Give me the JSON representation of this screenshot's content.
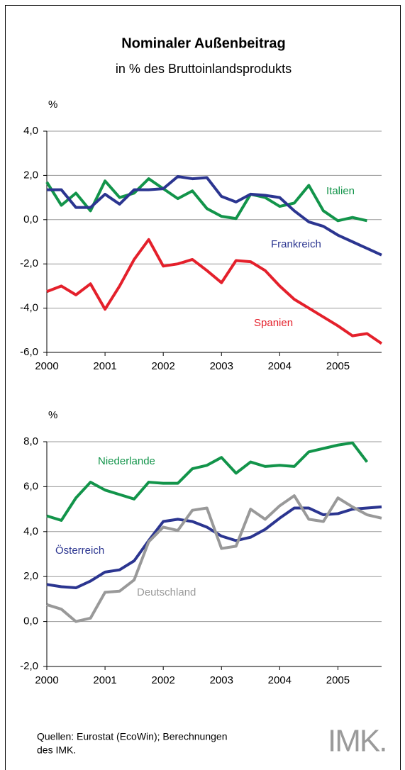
{
  "title": "Nominaler Außenbeitrag",
  "subtitle": "in % des Bruttoinlandsprodukts",
  "chart_data": [
    {
      "type": "line",
      "y_label": "%",
      "x": [
        2000,
        2000.25,
        2000.5,
        2000.75,
        2001,
        2001.25,
        2001.5,
        2001.75,
        2002,
        2002.25,
        2002.5,
        2002.75,
        2003,
        2003.25,
        2003.5,
        2003.75,
        2004,
        2004.25,
        2004.5,
        2004.75,
        2005,
        2005.25,
        2005.5,
        2005.75
      ],
      "xlim": [
        2000,
        2005.75
      ],
      "xticks": [
        2000,
        2001,
        2002,
        2003,
        2004,
        2005
      ],
      "ylim": [
        -6,
        4
      ],
      "yticks": [
        {
          "value": -6,
          "label": "-6,0"
        },
        {
          "value": -4,
          "label": "-4,0"
        },
        {
          "value": -2,
          "label": "-2,0"
        },
        {
          "value": 0,
          "label": "0,0"
        },
        {
          "value": 2,
          "label": "2,0"
        },
        {
          "value": 4,
          "label": "4,0"
        }
      ],
      "grid": true,
      "series": [
        {
          "name": "Italien",
          "color": "#12944a",
          "values": [
            1.7,
            0.65,
            1.2,
            0.4,
            1.75,
            1.0,
            1.2,
            1.85,
            1.4,
            0.95,
            1.3,
            0.5,
            0.15,
            0.05,
            1.15,
            1.0,
            0.6,
            0.75,
            1.55,
            0.4,
            -0.05,
            0.1,
            -0.05,
            null
          ]
        },
        {
          "name": "Frankreich",
          "color": "#2b3590",
          "values": [
            1.35,
            1.35,
            0.55,
            0.55,
            1.15,
            0.7,
            1.35,
            1.35,
            1.4,
            1.95,
            1.85,
            1.9,
            1.05,
            0.8,
            1.15,
            1.1,
            1.0,
            0.4,
            -0.1,
            -0.3,
            -0.7,
            -1.0,
            -1.3,
            -1.6
          ]
        },
        {
          "name": "Spanien",
          "color": "#e4202b",
          "values": [
            -3.25,
            -3.0,
            -3.4,
            -2.9,
            -4.05,
            -3.0,
            -1.8,
            -0.9,
            -2.1,
            -2.0,
            -1.8,
            -2.3,
            -2.85,
            -1.85,
            -1.9,
            -2.3,
            -3.0,
            -3.6,
            -4.0,
            -4.4,
            -4.8,
            -5.25,
            -5.15,
            -5.6
          ]
        }
      ]
    },
    {
      "type": "line",
      "y_label": "%",
      "x": [
        2000,
        2000.25,
        2000.5,
        2000.75,
        2001,
        2001.25,
        2001.5,
        2001.75,
        2002,
        2002.25,
        2002.5,
        2002.75,
        2003,
        2003.25,
        2003.5,
        2003.75,
        2004,
        2004.25,
        2004.5,
        2004.75,
        2005,
        2005.25,
        2005.5,
        2005.75
      ],
      "xlim": [
        2000,
        2005.75
      ],
      "xticks": [
        2000,
        2001,
        2002,
        2003,
        2004,
        2005
      ],
      "ylim": [
        -2,
        8
      ],
      "yticks": [
        {
          "value": -2,
          "label": "-2,0"
        },
        {
          "value": 0,
          "label": "0,0"
        },
        {
          "value": 2,
          "label": "2,0"
        },
        {
          "value": 4,
          "label": "4,0"
        },
        {
          "value": 6,
          "label": "6,0"
        },
        {
          "value": 8,
          "label": "8,0"
        }
      ],
      "grid": true,
      "series": [
        {
          "name": "Niederlande",
          "color": "#12944a",
          "values": [
            4.7,
            4.5,
            5.5,
            6.2,
            5.85,
            5.65,
            5.45,
            6.2,
            6.15,
            6.15,
            6.8,
            6.95,
            7.3,
            6.6,
            7.1,
            6.9,
            6.95,
            6.9,
            7.55,
            7.7,
            7.85,
            7.95,
            7.1,
            null
          ]
        },
        {
          "name": "Österreich",
          "color": "#2b3590",
          "values": [
            1.65,
            1.55,
            1.5,
            1.8,
            2.2,
            2.3,
            2.7,
            3.6,
            4.45,
            4.55,
            4.45,
            4.2,
            3.8,
            3.6,
            3.75,
            4.1,
            4.6,
            5.05,
            5.05,
            4.75,
            4.8,
            5.0,
            5.05,
            5.1
          ]
        },
        {
          "name": "Deutschland",
          "color": "#999999",
          "values": [
            0.75,
            0.55,
            0.0,
            0.15,
            1.3,
            1.35,
            1.85,
            3.55,
            4.2,
            4.05,
            4.95,
            5.05,
            3.25,
            3.35,
            5.0,
            4.55,
            5.15,
            5.6,
            4.55,
            4.45,
            5.5,
            5.1,
            4.75,
            4.6
          ]
        }
      ]
    }
  ],
  "source": [
    "Quellen: Eurostat (EcoWin); Berechnungen",
    "des IMK."
  ],
  "logo": "IMK."
}
